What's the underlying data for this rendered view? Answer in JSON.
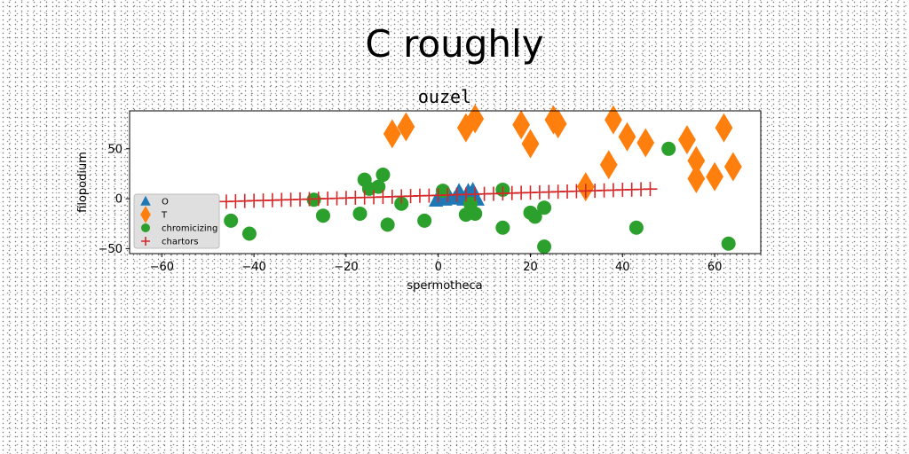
{
  "figure": {
    "suptitle": "C roughly"
  },
  "chart_data": {
    "type": "scatter",
    "title": "ouzel",
    "xlabel": "spermotheca",
    "ylabel": "filopodium",
    "xlim": [
      -67,
      70
    ],
    "ylim": [
      -55,
      88
    ],
    "xticks": [
      -60,
      -40,
      -20,
      0,
      20,
      40,
      60
    ],
    "yticks": [
      -50,
      0,
      50
    ],
    "xtick_labels": [
      "−60",
      "−40",
      "−20",
      "0",
      "20",
      "40",
      "60"
    ],
    "ytick_labels": [
      "−50",
      "0",
      "50"
    ],
    "legend_position": "lower-left",
    "series": [
      {
        "name": "O",
        "marker": "triangle",
        "color": "#1f77b4",
        "x": [
          -0.5,
          0.5,
          1.5,
          2.5,
          3.5,
          4.5,
          5.0,
          5.5,
          6.5,
          7.0,
          7.5,
          8.0,
          8.5
        ],
        "y": [
          -2,
          0,
          -1,
          2,
          0,
          8,
          4,
          -1,
          8,
          3,
          9,
          2,
          -1
        ]
      },
      {
        "name": "T",
        "marker": "diamond",
        "color": "#ff7f0e",
        "x": [
          -10,
          -7,
          6,
          8,
          18,
          20,
          25,
          26,
          32,
          37,
          38,
          41,
          45,
          54,
          56,
          56,
          60,
          62,
          64
        ],
        "y": [
          65,
          72,
          71,
          80,
          74,
          55,
          79,
          75,
          12,
          34,
          79,
          62,
          56,
          59,
          38,
          20,
          22,
          71,
          32
        ]
      },
      {
        "name": "chromicizing",
        "marker": "circle",
        "color": "#2ca02c",
        "x": [
          -45,
          -41,
          -27,
          -25,
          -17,
          -16,
          -15,
          -13,
          -12,
          -11,
          -8,
          -3,
          1,
          6,
          7,
          8,
          14,
          14,
          20,
          21,
          23,
          23,
          43,
          50,
          63
        ],
        "y": [
          -22,
          -35,
          -1,
          -17,
          -15,
          19,
          10,
          12,
          24,
          -26,
          -5,
          -22,
          8,
          -16,
          -5,
          -15,
          -29,
          9,
          -14,
          -18,
          -9,
          -48,
          -29,
          50,
          -45
        ]
      },
      {
        "name": "chartors",
        "marker": "plus",
        "color": "#d62728",
        "x": [
          -46,
          -44,
          -42,
          -40,
          -38,
          -36,
          -34,
          -32,
          -30,
          -28,
          -26,
          -24,
          -22,
          -20,
          -18,
          -16,
          -14,
          -12,
          -10,
          -8,
          -6,
          -4,
          -2,
          0,
          2,
          4,
          6,
          8,
          10,
          12,
          14,
          16,
          18,
          20,
          22,
          24,
          26,
          28,
          30,
          32,
          34,
          36,
          38,
          40,
          42,
          44,
          46
        ],
        "y": [
          -2.9,
          -2.6,
          -2.3,
          -2.0,
          -1.8,
          -1.5,
          -1.2,
          -1.0,
          -0.7,
          -0.4,
          -0.1,
          0.1,
          0.4,
          0.7,
          1.0,
          1.2,
          1.5,
          1.8,
          2.0,
          2.3,
          2.6,
          2.9,
          3.1,
          3.4,
          3.7,
          4.0,
          4.2,
          4.5,
          4.8,
          5.0,
          5.3,
          5.6,
          5.9,
          6.1,
          6.4,
          6.7,
          7.0,
          7.2,
          7.5,
          7.8,
          8.0,
          8.3,
          8.6,
          8.9,
          9.1,
          9.4,
          9.7
        ]
      }
    ]
  }
}
